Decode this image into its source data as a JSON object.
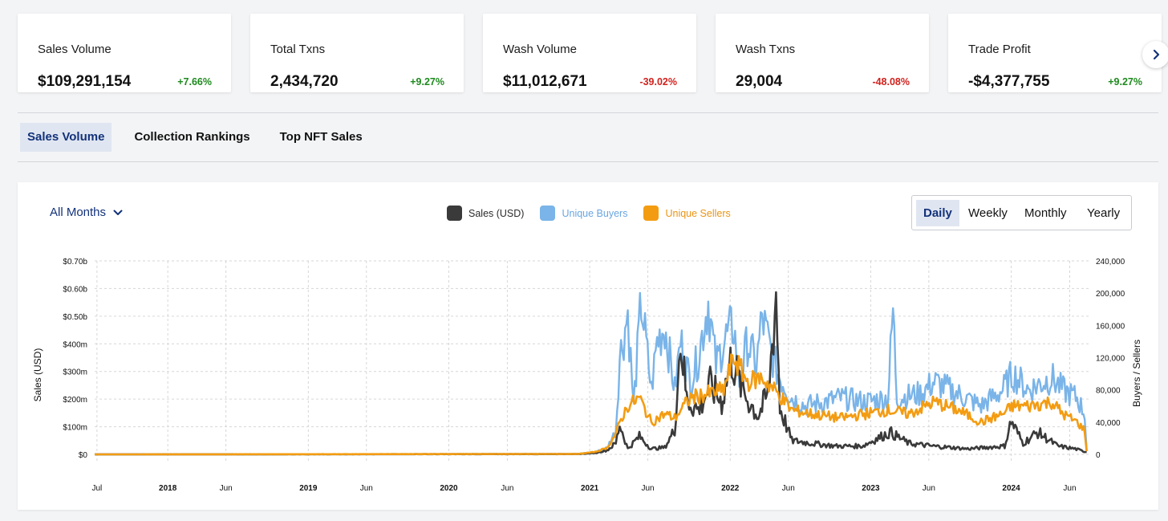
{
  "stats": [
    {
      "label": "Sales Volume",
      "value": "$109,291,154",
      "change": "+7.66%",
      "trend": "up"
    },
    {
      "label": "Total Txns",
      "value": "2,434,720",
      "change": "+9.27%",
      "trend": "up"
    },
    {
      "label": "Wash Volume",
      "value": "$11,012,671",
      "change": "-39.02%",
      "trend": "down"
    },
    {
      "label": "Wash Txns",
      "value": "29,004",
      "change": "-48.08%",
      "trend": "down"
    },
    {
      "label": "Trade Profit",
      "value": "-$4,377,755",
      "change": "+9.27%",
      "trend": "up"
    }
  ],
  "colors": {
    "up": "#1e8a1e",
    "down": "#d0231e",
    "sales": "#3a3a3a",
    "buyers": "#7ab4e8",
    "sellers": "#f39c12",
    "accent": "#13327a"
  },
  "tabs": [
    "Sales Volume",
    "Collection Rankings",
    "Top NFT Sales"
  ],
  "filter": {
    "months_label": "All Months"
  },
  "periods": [
    "Daily",
    "Weekly",
    "Monthly",
    "Yearly"
  ],
  "chart_data": {
    "type": "line",
    "legend": [
      "Sales (USD)",
      "Unique Buyers",
      "Unique Sellers"
    ],
    "legend_position": "top-center",
    "grid": true,
    "ylabel_left": "Sales (USD)",
    "ylabel_right": "Buyers / Sellers",
    "y_left_ticks": [
      "$0",
      "$100m",
      "$200m",
      "$300m",
      "$400m",
      "$0.50b",
      "$0.60b",
      "$0.70b"
    ],
    "y_right_ticks": [
      "0",
      "40,000",
      "80,000",
      "120,000",
      "160,000",
      "200,000",
      "240,000"
    ],
    "ylim_left": [
      0,
      700000000
    ],
    "ylim_right": [
      0,
      240000
    ],
    "x_ticks": [
      {
        "label": "Jul",
        "bold": false
      },
      {
        "label": "2018",
        "bold": true
      },
      {
        "label": "Jun",
        "bold": false
      },
      {
        "label": "2019",
        "bold": true
      },
      {
        "label": "Jun",
        "bold": false
      },
      {
        "label": "2020",
        "bold": true
      },
      {
        "label": "Jun",
        "bold": false
      },
      {
        "label": "2021",
        "bold": true
      },
      {
        "label": "Jun",
        "bold": false
      },
      {
        "label": "2022",
        "bold": true
      },
      {
        "label": "Jun",
        "bold": false
      },
      {
        "label": "2023",
        "bold": true
      },
      {
        "label": "Jun",
        "bold": false
      },
      {
        "label": "2024",
        "bold": true
      },
      {
        "label": "Jun",
        "bold": false
      }
    ],
    "x_tick_dates": [
      "2017-07-01",
      "2018-01-01",
      "2018-06-01",
      "2019-01-01",
      "2019-06-01",
      "2020-01-01",
      "2020-06-01",
      "2021-01-01",
      "2021-06-01",
      "2022-01-01",
      "2022-06-01",
      "2023-01-01",
      "2023-06-01",
      "2024-01-01",
      "2024-06-01"
    ],
    "series": [
      {
        "name": "Sales (USD)",
        "axis": "left",
        "points": [
          [
            "2017-06-25",
            0
          ],
          [
            "2020-12-01",
            1000000
          ],
          [
            "2021-01-15",
            5000000
          ],
          [
            "2021-02-15",
            15000000
          ],
          [
            "2021-03-10",
            40000000
          ],
          [
            "2021-03-20",
            110000000
          ],
          [
            "2021-04-10",
            20000000
          ],
          [
            "2021-05-10",
            65000000
          ],
          [
            "2021-06-10",
            20000000
          ],
          [
            "2021-07-15",
            25000000
          ],
          [
            "2021-08-10",
            90000000
          ],
          [
            "2021-08-25",
            420000000
          ],
          [
            "2021-09-10",
            200000000
          ],
          [
            "2021-10-10",
            160000000
          ],
          [
            "2021-11-10",
            250000000
          ],
          [
            "2021-12-10",
            190000000
          ],
          [
            "2022-01-05",
            350000000
          ],
          [
            "2022-01-25",
            260000000
          ],
          [
            "2022-02-15",
            200000000
          ],
          [
            "2022-03-15",
            140000000
          ],
          [
            "2022-04-10",
            220000000
          ],
          [
            "2022-04-30",
            580000000
          ],
          [
            "2022-05-10",
            170000000
          ],
          [
            "2022-06-10",
            50000000
          ],
          [
            "2022-08-01",
            40000000
          ],
          [
            "2022-10-01",
            30000000
          ],
          [
            "2022-12-10",
            30000000
          ],
          [
            "2023-02-20",
            80000000
          ],
          [
            "2023-04-10",
            40000000
          ],
          [
            "2023-06-10",
            30000000
          ],
          [
            "2023-09-10",
            20000000
          ],
          [
            "2023-12-15",
            30000000
          ],
          [
            "2024-01-01",
            120000000
          ],
          [
            "2024-02-01",
            40000000
          ],
          [
            "2024-03-10",
            80000000
          ],
          [
            "2024-05-01",
            30000000
          ],
          [
            "2024-06-15",
            20000000
          ],
          [
            "2024-07-15",
            8000000
          ]
        ]
      },
      {
        "name": "Unique Buyers",
        "axis": "right",
        "points": [
          [
            "2017-06-25",
            0
          ],
          [
            "2020-12-01",
            500
          ],
          [
            "2021-01-15",
            3000
          ],
          [
            "2021-02-15",
            8000
          ],
          [
            "2021-03-10",
            30000
          ],
          [
            "2021-03-20",
            120000
          ],
          [
            "2021-04-10",
            175000
          ],
          [
            "2021-04-25",
            60000
          ],
          [
            "2021-05-15",
            190000
          ],
          [
            "2021-06-10",
            80000
          ],
          [
            "2021-06-25",
            140000
          ],
          [
            "2021-07-15",
            160000
          ],
          [
            "2021-08-10",
            80000
          ],
          [
            "2021-08-25",
            140000
          ],
          [
            "2021-09-20",
            90000
          ],
          [
            "2021-10-10",
            120000
          ],
          [
            "2021-11-05",
            190000
          ],
          [
            "2021-11-25",
            110000
          ],
          [
            "2021-12-15",
            140000
          ],
          [
            "2022-01-10",
            160000
          ],
          [
            "2022-01-25",
            90000
          ],
          [
            "2022-02-15",
            140000
          ],
          [
            "2022-03-10",
            110000
          ],
          [
            "2022-03-25",
            170000
          ],
          [
            "2022-04-15",
            130000
          ],
          [
            "2022-05-05",
            100000
          ],
          [
            "2022-06-10",
            70000
          ],
          [
            "2022-07-15",
            60000
          ],
          [
            "2022-09-01",
            65000
          ],
          [
            "2022-10-15",
            70000
          ],
          [
            "2022-12-15",
            65000
          ],
          [
            "2023-02-15",
            70000
          ],
          [
            "2023-02-28",
            180000
          ],
          [
            "2023-03-10",
            70000
          ],
          [
            "2023-05-10",
            75000
          ],
          [
            "2023-06-15",
            90000
          ],
          [
            "2023-08-15",
            75000
          ],
          [
            "2023-10-15",
            60000
          ],
          [
            "2023-12-10",
            80000
          ],
          [
            "2024-01-05",
            100000
          ],
          [
            "2024-02-15",
            80000
          ],
          [
            "2024-04-15",
            95000
          ],
          [
            "2024-05-15",
            80000
          ],
          [
            "2024-06-20",
            70000
          ],
          [
            "2024-07-10",
            50000
          ],
          [
            "2024-07-15",
            5000
          ]
        ]
      },
      {
        "name": "Unique Sellers",
        "axis": "right",
        "points": [
          [
            "2017-06-25",
            0
          ],
          [
            "2020-12-01",
            500
          ],
          [
            "2021-01-15",
            3000
          ],
          [
            "2021-02-15",
            8000
          ],
          [
            "2021-03-10",
            25000
          ],
          [
            "2021-03-20",
            40000
          ],
          [
            "2021-04-10",
            60000
          ],
          [
            "2021-05-10",
            70000
          ],
          [
            "2021-06-10",
            40000
          ],
          [
            "2021-07-15",
            50000
          ],
          [
            "2021-08-10",
            45000
          ],
          [
            "2021-08-25",
            55000
          ],
          [
            "2021-09-20",
            70000
          ],
          [
            "2021-11-05",
            75000
          ],
          [
            "2021-12-15",
            80000
          ],
          [
            "2022-01-10",
            120000
          ],
          [
            "2022-02-15",
            90000
          ],
          [
            "2022-03-25",
            95000
          ],
          [
            "2022-04-15",
            85000
          ],
          [
            "2022-05-05",
            75000
          ],
          [
            "2022-06-10",
            55000
          ],
          [
            "2022-08-01",
            50000
          ],
          [
            "2022-10-15",
            45000
          ],
          [
            "2022-12-15",
            50000
          ],
          [
            "2023-02-15",
            55000
          ],
          [
            "2023-04-10",
            50000
          ],
          [
            "2023-06-15",
            65000
          ],
          [
            "2023-08-15",
            55000
          ],
          [
            "2023-10-15",
            40000
          ],
          [
            "2023-12-10",
            50000
          ],
          [
            "2024-01-05",
            60000
          ],
          [
            "2024-02-15",
            60000
          ],
          [
            "2024-04-15",
            65000
          ],
          [
            "2024-05-15",
            50000
          ],
          [
            "2024-06-20",
            40000
          ],
          [
            "2024-07-10",
            30000
          ],
          [
            "2024-07-15",
            4000
          ]
        ]
      }
    ]
  }
}
